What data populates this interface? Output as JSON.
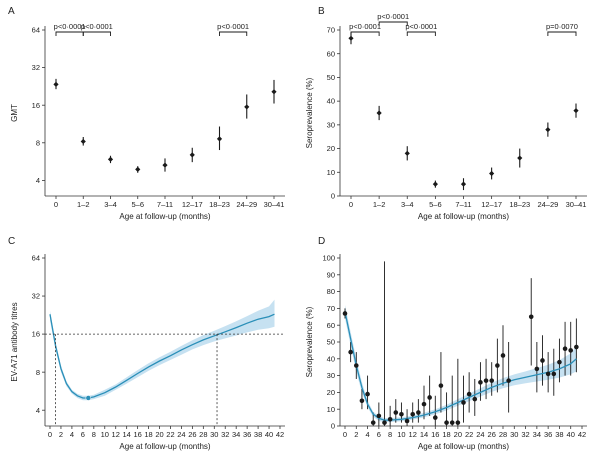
{
  "chart_data": [
    {
      "panel": "A",
      "type": "scatter",
      "scale": "log2",
      "ylabel": "GMT",
      "xlabel": "Age at follow-up (months)",
      "yticks": [
        4,
        8,
        16,
        32,
        64
      ],
      "ylim": [
        3,
        64
      ],
      "categories": [
        "0",
        "1–2",
        "3–4",
        "5–6",
        "7–11",
        "12–17",
        "18–23",
        "24–29",
        "30–41"
      ],
      "values": [
        23.5,
        8.2,
        5.9,
        4.9,
        5.3,
        6.4,
        8.6,
        15.5,
        20.5
      ],
      "lower": [
        21.5,
        7.6,
        5.5,
        4.6,
        4.7,
        5.6,
        7.0,
        12.5,
        16.5
      ],
      "upper": [
        26.0,
        8.9,
        6.3,
        5.2,
        6.0,
        7.3,
        10.8,
        19.5,
        25.5
      ],
      "comparisons": [
        {
          "from": 0,
          "to": 1,
          "label": "p<0·0001"
        },
        {
          "from": 1,
          "to": 2,
          "label": "p<0·0001"
        },
        {
          "from": 6,
          "to": 7,
          "label": "p<0·0001"
        }
      ]
    },
    {
      "panel": "B",
      "type": "scatter",
      "ylabel": "Seroprevalence (%)",
      "xlabel": "Age at follow-up (months)",
      "yticks": [
        0,
        10,
        20,
        30,
        40,
        50,
        60,
        70
      ],
      "ylim": [
        0,
        70
      ],
      "categories": [
        "0",
        "1–2",
        "3–4",
        "5–6",
        "7–11",
        "12–17",
        "18–23",
        "24–29",
        "30–41"
      ],
      "values": [
        66.5,
        35,
        18,
        5,
        5,
        9.5,
        16,
        28,
        36
      ],
      "lower": [
        64,
        32,
        15,
        3.5,
        2.5,
        7,
        12,
        25,
        33
      ],
      "upper": [
        69,
        38,
        21,
        6.5,
        7.5,
        12,
        20,
        31,
        39
      ],
      "comparisons": [
        {
          "from": 0,
          "to": 1,
          "label": "p<0·0001",
          "level": 0
        },
        {
          "from": 1,
          "to": 2,
          "label": "p<0·0001",
          "level": 1
        },
        {
          "from": 2,
          "to": 3,
          "label": "p<0·0001",
          "level": 0
        },
        {
          "from": 7,
          "to": 8,
          "label": "p=0·0070",
          "level": 0
        }
      ]
    },
    {
      "panel": "C",
      "type": "line",
      "scale": "log2",
      "ylabel": "EV-A71 antibody titres",
      "xlabel": "Age at follow-up (months)",
      "yticks": [
        4,
        8,
        16,
        32,
        64
      ],
      "ylim": [
        3,
        64
      ],
      "xlim": [
        0,
        42
      ],
      "xticks": [
        0,
        2,
        4,
        6,
        8,
        10,
        12,
        14,
        16,
        18,
        20,
        22,
        24,
        26,
        28,
        30,
        32,
        34,
        36,
        38,
        40,
        42
      ],
      "x": [
        0,
        1,
        2,
        3,
        4,
        5,
        6,
        7,
        8,
        10,
        12,
        14,
        16,
        18,
        20,
        22,
        24,
        26,
        28,
        30,
        32,
        34,
        36,
        38,
        40,
        41
      ],
      "values": [
        23,
        13,
        8.5,
        6.5,
        5.6,
        5.2,
        5.0,
        5.0,
        5.1,
        5.5,
        6.1,
        6.9,
        7.8,
        8.8,
        9.8,
        10.8,
        12.0,
        13.2,
        14.4,
        15.5,
        16.7,
        18.0,
        19.5,
        21.0,
        22.0,
        23.0
      ],
      "ci_lower": [
        20.5,
        12.0,
        8.0,
        6.2,
        5.4,
        5.0,
        4.8,
        4.8,
        4.9,
        5.2,
        5.8,
        6.5,
        7.3,
        8.2,
        9.1,
        10.0,
        11.0,
        12.1,
        13.1,
        14.0,
        14.8,
        15.6,
        16.5,
        17.3,
        17.8,
        18.3
      ],
      "ci_upper": [
        24.5,
        14.0,
        9.0,
        6.8,
        5.8,
        5.4,
        5.2,
        5.2,
        5.3,
        5.8,
        6.4,
        7.3,
        8.3,
        9.4,
        10.5,
        11.6,
        12.9,
        14.3,
        15.7,
        17.0,
        18.5,
        20.2,
        22.2,
        24.5,
        26.5,
        30.0
      ],
      "minimum_point": {
        "x": 7,
        "y": 5.0
      },
      "reference_y": 16,
      "crossing_x": 30.5,
      "minimum_marker_x": 1
    },
    {
      "panel": "D",
      "type": "scatter",
      "ylabel": "Seroprevalence (%)",
      "xlabel": "Age at follow-up (months)",
      "yticks": [
        0,
        10,
        20,
        30,
        40,
        50,
        60,
        70,
        80,
        90,
        100
      ],
      "ylim": [
        0,
        100
      ],
      "xlim": [
        0,
        42
      ],
      "xticks": [
        0,
        2,
        4,
        6,
        8,
        10,
        12,
        14,
        16,
        18,
        20,
        22,
        24,
        26,
        28,
        30,
        32,
        34,
        36,
        38,
        40,
        42
      ],
      "points": [
        {
          "x": 0,
          "y": 67,
          "lo": 64,
          "hi": 70
        },
        {
          "x": 1,
          "y": 44,
          "lo": 38,
          "hi": 50
        },
        {
          "x": 2,
          "y": 36,
          "lo": 28,
          "hi": 44
        },
        {
          "x": 3,
          "y": 15,
          "lo": 10,
          "hi": 22
        },
        {
          "x": 4,
          "y": 19,
          "lo": 10,
          "hi": 30
        },
        {
          "x": 5,
          "y": 2,
          "lo": 0,
          "hi": 8
        },
        {
          "x": 6,
          "y": 6,
          "lo": 0,
          "hi": 14
        },
        {
          "x": 7,
          "y": 2,
          "lo": 0,
          "hi": 98
        },
        {
          "x": 8,
          "y": 4,
          "lo": 0,
          "hi": 12
        },
        {
          "x": 9,
          "y": 8,
          "lo": 2,
          "hi": 16
        },
        {
          "x": 10,
          "y": 7,
          "lo": 2,
          "hi": 14
        },
        {
          "x": 11,
          "y": 3,
          "lo": 0,
          "hi": 10
        },
        {
          "x": 12,
          "y": 7,
          "lo": 2,
          "hi": 14
        },
        {
          "x": 13,
          "y": 8,
          "lo": 2,
          "hi": 16
        },
        {
          "x": 14,
          "y": 13,
          "lo": 4,
          "hi": 24
        },
        {
          "x": 15,
          "y": 17,
          "lo": 6,
          "hi": 30
        },
        {
          "x": 16,
          "y": 5,
          "lo": 0,
          "hi": 18
        },
        {
          "x": 17,
          "y": 24,
          "lo": 8,
          "hi": 44
        },
        {
          "x": 18,
          "y": 2,
          "lo": 0,
          "hi": 20
        },
        {
          "x": 19,
          "y": 2,
          "lo": 0,
          "hi": 30
        },
        {
          "x": 20,
          "y": 2,
          "lo": 0,
          "hi": 40
        },
        {
          "x": 21,
          "y": 14,
          "lo": 2,
          "hi": 30
        },
        {
          "x": 22,
          "y": 19,
          "lo": 8,
          "hi": 32
        },
        {
          "x": 23,
          "y": 16,
          "lo": 6,
          "hi": 28
        },
        {
          "x": 24,
          "y": 26,
          "lo": 15,
          "hi": 38
        },
        {
          "x": 25,
          "y": 27,
          "lo": 16,
          "hi": 40
        },
        {
          "x": 26,
          "y": 27,
          "lo": 18,
          "hi": 38
        },
        {
          "x": 27,
          "y": 36,
          "lo": 20,
          "hi": 52
        },
        {
          "x": 28,
          "y": 42,
          "lo": 24,
          "hi": 60
        },
        {
          "x": 29,
          "y": 27,
          "lo": 8,
          "hi": 50
        },
        {
          "x": 33,
          "y": 65,
          "lo": 36,
          "hi": 88
        },
        {
          "x": 34,
          "y": 34,
          "lo": 20,
          "hi": 50
        },
        {
          "x": 35,
          "y": 39,
          "lo": 24,
          "hi": 54
        },
        {
          "x": 36,
          "y": 31,
          "lo": 20,
          "hi": 44
        },
        {
          "x": 37,
          "y": 31,
          "lo": 18,
          "hi": 46
        },
        {
          "x": 38,
          "y": 38,
          "lo": 26,
          "hi": 52
        },
        {
          "x": 39,
          "y": 46,
          "lo": 30,
          "hi": 62
        },
        {
          "x": 40,
          "y": 45,
          "lo": 30,
          "hi": 62
        },
        {
          "x": 41,
          "y": 47,
          "lo": 32,
          "hi": 64
        }
      ],
      "fit_x": [
        0,
        1,
        2,
        3,
        4,
        5,
        6,
        7,
        8,
        10,
        12,
        14,
        16,
        18,
        20,
        22,
        24,
        26,
        28,
        30,
        32,
        34,
        36,
        38,
        40,
        41
      ],
      "fit_y": [
        68,
        52,
        36,
        23,
        13,
        7,
        4.5,
        3.5,
        3.5,
        4,
        5,
        6.5,
        8.5,
        11,
        14,
        17,
        20,
        23,
        25.5,
        27.5,
        29,
        30.5,
        32,
        34,
        37,
        40
      ],
      "fit_lower": [
        64,
        48,
        32,
        20,
        11,
        5.5,
        3,
        2.3,
        2.3,
        2.8,
        3.8,
        5.1,
        7,
        9.3,
        12,
        14.7,
        17.5,
        20.3,
        22.5,
        24.3,
        25.5,
        26.5,
        27.5,
        28.8,
        30.8,
        32.5
      ],
      "fit_upper": [
        72,
        56,
        40,
        26,
        15,
        8.5,
        6,
        4.7,
        4.7,
        5.2,
        6.2,
        7.9,
        10,
        12.7,
        16,
        19.3,
        22.5,
        25.7,
        28.5,
        30.7,
        32.5,
        34.5,
        36.5,
        39.2,
        43.2,
        47.5
      ]
    }
  ],
  "panels": [
    {
      "letter": "A"
    },
    {
      "letter": "B"
    },
    {
      "letter": "C"
    },
    {
      "letter": "D"
    }
  ],
  "colors": {
    "marker": "#1a1a1a",
    "fit_line": "#2a8fb8",
    "ci_band": "#bcdcef",
    "min_point": "#2a8fb8",
    "axis": "#333333"
  }
}
